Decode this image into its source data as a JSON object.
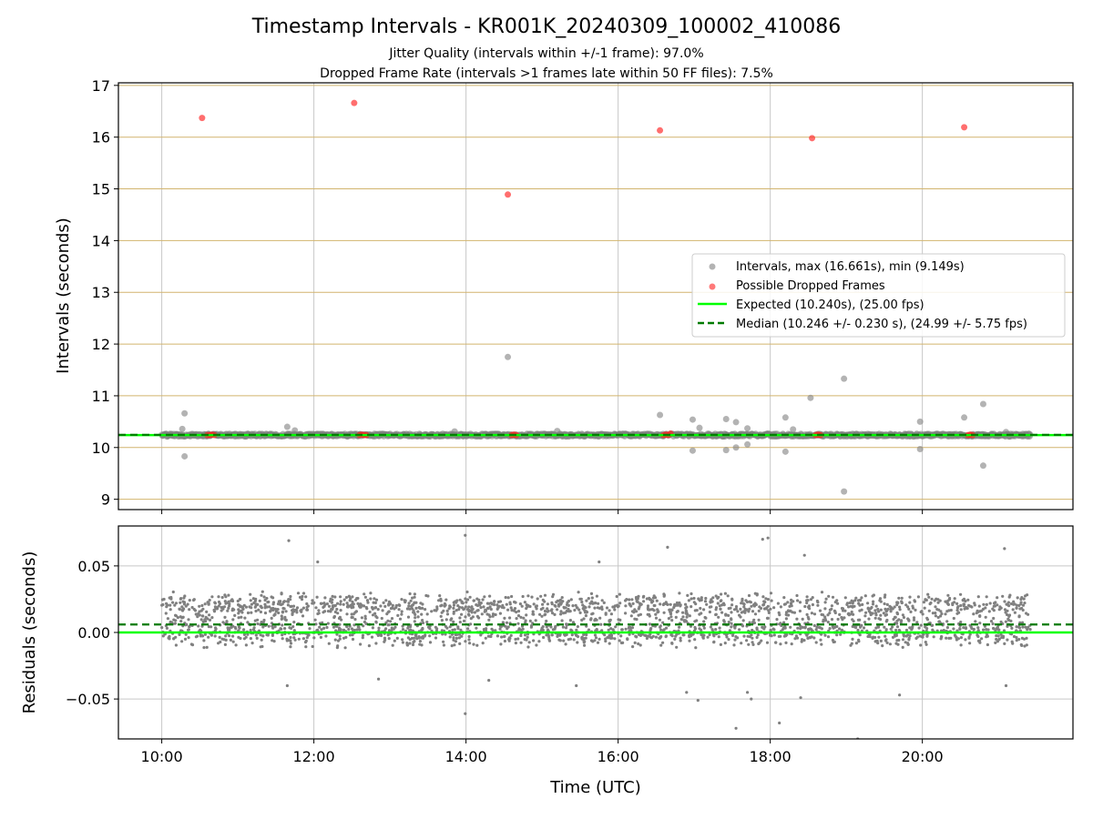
{
  "chart_data": {
    "type": "scatter",
    "title": "Timestamp Intervals - KR001K_20240309_100002_410086",
    "subtitle_lines": [
      "Jitter Quality (intervals within +/-1 frame): 97.0%",
      "Dropped Frame Rate (intervals >1 frames late within 50 FF files): 7.5%"
    ],
    "xlabel": "Time (UTC)",
    "x_ticks": [
      "10:00",
      "12:00",
      "14:00",
      "16:00",
      "18:00",
      "20:00"
    ],
    "x_range_hours": [
      9.43,
      21.98
    ],
    "data_x_range_hours": [
      10.0,
      21.42
    ],
    "colors": {
      "intervals": "#808080",
      "dropped": "#ff2020",
      "expected": "#00ff00",
      "median": "#007a00",
      "band": "#d2b46e",
      "grid": "#c8c8c8"
    },
    "panels": [
      {
        "id": "intervals",
        "ylabel": "Intervals (seconds)",
        "ylim": [
          8.8,
          17.05
        ],
        "y_ticks": [
          "9",
          "10",
          "11",
          "12",
          "13",
          "14",
          "15",
          "16",
          "17"
        ],
        "y_tick_values": [
          9,
          10,
          11,
          12,
          13,
          14,
          15,
          16,
          17
        ],
        "horizontal_bands_at": [
          9,
          10,
          11,
          12,
          13,
          14,
          15,
          16,
          17
        ],
        "expected_line": 10.24,
        "median_line": 10.246,
        "legend_position": "center-right",
        "legend": [
          {
            "label": "Intervals, max (16.661s), min (9.149s)",
            "marker": "gray-dot"
          },
          {
            "label": "Possible Dropped Frames",
            "marker": "red-dot"
          },
          {
            "label": "Expected (10.240s), (25.00 fps)",
            "marker": "green-line"
          },
          {
            "label": "Median (10.246 +/- 0.230 s), (24.99 +/- 5.75 fps)",
            "marker": "green-dashed"
          }
        ],
        "dropped_frames": [
          {
            "x": 10.53,
            "y": 16.37
          },
          {
            "x": 12.53,
            "y": 16.66
          },
          {
            "x": 14.55,
            "y": 14.89
          },
          {
            "x": 16.55,
            "y": 16.13
          },
          {
            "x": 18.55,
            "y": 15.98
          },
          {
            "x": 20.55,
            "y": 16.19
          },
          {
            "x": 10.6,
            "y": 10.24
          },
          {
            "x": 10.63,
            "y": 10.24
          },
          {
            "x": 10.66,
            "y": 10.25
          },
          {
            "x": 10.69,
            "y": 10.24
          },
          {
            "x": 12.6,
            "y": 10.24
          },
          {
            "x": 12.63,
            "y": 10.25
          },
          {
            "x": 12.66,
            "y": 10.24
          },
          {
            "x": 12.69,
            "y": 10.24
          },
          {
            "x": 14.6,
            "y": 10.24
          },
          {
            "x": 14.63,
            "y": 10.25
          },
          {
            "x": 14.66,
            "y": 10.24
          },
          {
            "x": 16.6,
            "y": 10.24
          },
          {
            "x": 16.63,
            "y": 10.25
          },
          {
            "x": 16.66,
            "y": 10.24
          },
          {
            "x": 16.69,
            "y": 10.27
          },
          {
            "x": 18.6,
            "y": 10.24
          },
          {
            "x": 18.63,
            "y": 10.25
          },
          {
            "x": 18.66,
            "y": 10.24
          },
          {
            "x": 20.6,
            "y": 10.24
          },
          {
            "x": 20.63,
            "y": 10.25
          },
          {
            "x": 20.66,
            "y": 10.24
          }
        ],
        "interval_outliers": [
          {
            "x": 10.3,
            "y": 10.66
          },
          {
            "x": 10.3,
            "y": 9.83
          },
          {
            "x": 10.27,
            "y": 10.36
          },
          {
            "x": 14.55,
            "y": 11.75
          },
          {
            "x": 16.55,
            "y": 10.63
          },
          {
            "x": 16.98,
            "y": 10.54
          },
          {
            "x": 16.98,
            "y": 9.94
          },
          {
            "x": 17.07,
            "y": 10.38
          },
          {
            "x": 17.42,
            "y": 10.55
          },
          {
            "x": 17.42,
            "y": 9.95
          },
          {
            "x": 17.55,
            "y": 10.49
          },
          {
            "x": 17.55,
            "y": 10.0
          },
          {
            "x": 17.7,
            "y": 10.37
          },
          {
            "x": 17.7,
            "y": 10.06
          },
          {
            "x": 18.2,
            "y": 10.58
          },
          {
            "x": 18.2,
            "y": 9.92
          },
          {
            "x": 18.3,
            "y": 10.35
          },
          {
            "x": 18.53,
            "y": 10.96
          },
          {
            "x": 18.97,
            "y": 11.33
          },
          {
            "x": 18.97,
            "y": 9.15
          },
          {
            "x": 19.97,
            "y": 10.5
          },
          {
            "x": 19.97,
            "y": 9.97
          },
          {
            "x": 20.55,
            "y": 10.58
          },
          {
            "x": 20.8,
            "y": 10.84
          },
          {
            "x": 20.8,
            "y": 9.65
          },
          {
            "x": 11.65,
            "y": 10.4
          },
          {
            "x": 11.75,
            "y": 10.33
          },
          {
            "x": 15.2,
            "y": 10.32
          },
          {
            "x": 13.85,
            "y": 10.31
          },
          {
            "x": 21.1,
            "y": 10.3
          }
        ],
        "interval_band": {
          "x_start": 10.0,
          "x_end": 21.42,
          "center": 10.24,
          "spread": 0.03
        }
      },
      {
        "id": "residuals",
        "ylabel": "Residuals (seconds)",
        "ylim": [
          -0.08,
          0.08
        ],
        "y_ticks": [
          "0.05",
          "0.00",
          "−0.05"
        ],
        "y_tick_values": [
          0.05,
          0.0,
          -0.05
        ],
        "expected_line": 0.0,
        "median_line": 0.006,
        "residual_clusters": [
          0.0,
          0.019
        ],
        "residual_spread": 0.012,
        "residual_outliers": [
          {
            "x": 11.67,
            "y": 0.069
          },
          {
            "x": 12.05,
            "y": 0.053
          },
          {
            "x": 13.99,
            "y": 0.073
          },
          {
            "x": 13.99,
            "y": -0.061
          },
          {
            "x": 15.75,
            "y": 0.053
          },
          {
            "x": 16.65,
            "y": 0.064
          },
          {
            "x": 17.55,
            "y": -0.072
          },
          {
            "x": 17.9,
            "y": 0.07
          },
          {
            "x": 17.97,
            "y": 0.071
          },
          {
            "x": 18.45,
            "y": 0.058
          },
          {
            "x": 17.7,
            "y": -0.045
          },
          {
            "x": 17.75,
            "y": -0.05
          },
          {
            "x": 18.12,
            "y": -0.068
          },
          {
            "x": 18.4,
            "y": -0.049
          },
          {
            "x": 19.15,
            "y": -0.08
          },
          {
            "x": 11.65,
            "y": -0.04
          },
          {
            "x": 19.7,
            "y": -0.047
          },
          {
            "x": 17.05,
            "y": -0.051
          },
          {
            "x": 21.08,
            "y": 0.063
          },
          {
            "x": 21.1,
            "y": -0.04
          },
          {
            "x": 15.45,
            "y": -0.04
          },
          {
            "x": 14.3,
            "y": -0.036
          },
          {
            "x": 16.9,
            "y": -0.045
          },
          {
            "x": 12.85,
            "y": -0.035
          }
        ]
      }
    ]
  }
}
